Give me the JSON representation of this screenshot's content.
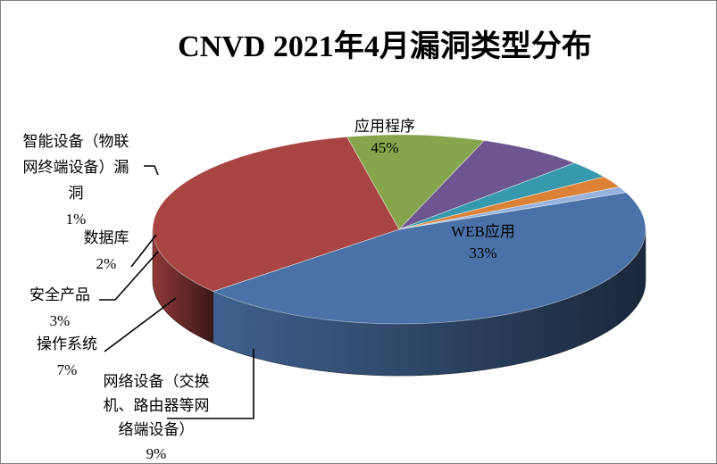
{
  "chart_data": {
    "type": "pie",
    "title": "CNVD 2021年4月漏洞类型分布",
    "three_d": true,
    "legend": "none",
    "slices": [
      {
        "category": "应用程序",
        "value": 45,
        "label": "45%",
        "color": "#4a72a8"
      },
      {
        "category": "WEB应用",
        "value": 33,
        "label": "33%",
        "color": "#a84442"
      },
      {
        "category": "网络设备（交换机、路由器等网络端设备）",
        "value": 9,
        "label": "9%",
        "color": "#86a54c"
      },
      {
        "category": "操作系统",
        "value": 7,
        "label": "7%",
        "color": "#6d5690"
      },
      {
        "category": "安全产品",
        "value": 3,
        "label": "3%",
        "color": "#3799ad"
      },
      {
        "category": "数据库",
        "value": 2,
        "label": "2%",
        "color": "#db8237"
      },
      {
        "category": "智能设备（物联网终端设备）漏洞",
        "value": 1,
        "label": "1%",
        "color": "#96b2dc"
      }
    ],
    "label_lines": {
      "应用程序": [
        "应用程序"
      ],
      "WEB应用": [
        "WEB应用"
      ],
      "网络设备（交换机、路由器等网络端设备）": [
        "网络设备（交换",
        "机、路由器等网",
        "络端设备）"
      ],
      "操作系统": [
        "操作系统"
      ],
      "安全产品": [
        "安全产品"
      ],
      "数据库": [
        "数据库"
      ],
      "智能设备（物联网终端设备）漏洞": [
        "智能设备（物联",
        "网终端设备）漏",
        "洞"
      ]
    }
  }
}
